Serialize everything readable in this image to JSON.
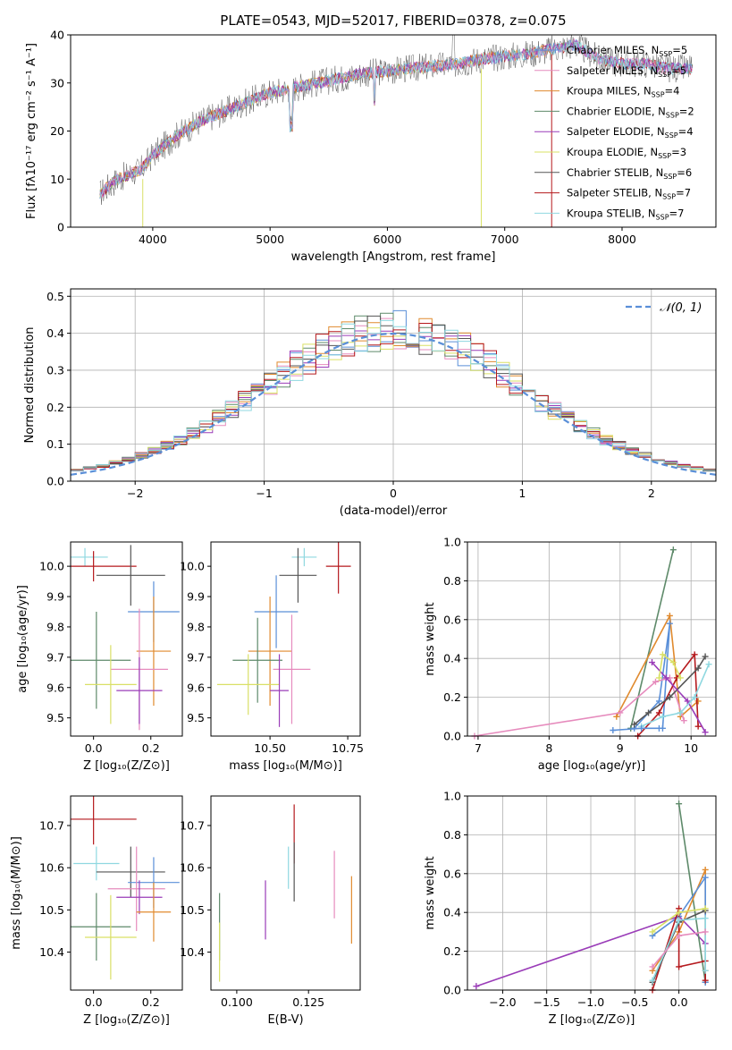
{
  "colors": {
    "chabrier_miles": "#5a8fd8",
    "salpeter_miles": "#e68bbd",
    "kroupa_miles": "#e08a2e",
    "chabrier_elodie": "#5e8a6a",
    "salpeter_elodie": "#9a3cb8",
    "kroupa_elodie": "#d9e066",
    "chabrier_stelib": "#555555",
    "salpeter_stelib": "#b5191d",
    "kroupa_stelib": "#8fd8e0",
    "gauss": "#5a8fd8"
  },
  "chart_data": [
    {
      "id": "spectrum",
      "type": "line",
      "title": "PLATE=0543, MJD=52017, FIBERID=0378, z=0.075",
      "xlabel": "wavelength [Angstrom, rest frame]",
      "ylabel": "Flux [fλ10⁻¹⁷ erg cm⁻² s⁻¹ A⁻¹]",
      "xlim": [
        3300,
        8800
      ],
      "ylim": [
        0,
        40
      ],
      "xticks": [
        "4000",
        "5000",
        "6000",
        "7000",
        "8000"
      ],
      "yticks": [
        "0",
        "10",
        "20",
        "30",
        "40"
      ],
      "continuum_x": [
        3550,
        3700,
        3900,
        4000,
        4200,
        4400,
        4600,
        4800,
        5000,
        5200,
        5400,
        5600,
        5800,
        6000,
        6200,
        6400,
        6600,
        6800,
        7000,
        7200,
        7400,
        7600,
        7800,
        8000,
        8200,
        8400,
        8600
      ],
      "continuum_y": [
        7,
        10,
        12,
        15,
        19,
        22,
        24,
        26,
        28,
        29,
        30,
        31,
        32,
        32.5,
        33,
        33.5,
        34,
        35,
        35.5,
        36,
        37,
        38,
        35,
        34,
        34,
        33,
        33
      ],
      "legend": [
        {
          "label": "Chabrier MILES, N",
          "n": "5",
          "color": "chabrier_miles"
        },
        {
          "label": "Salpeter MILES, N",
          "n": "5",
          "color": "salpeter_miles"
        },
        {
          "label": "Kroupa MILES, N",
          "n": "4",
          "color": "kroupa_miles"
        },
        {
          "label": "Chabrier ELODIE, N",
          "n": "2",
          "color": "chabrier_elodie"
        },
        {
          "label": "Salpeter ELODIE, N",
          "n": "4",
          "color": "salpeter_elodie"
        },
        {
          "label": "Kroupa ELODIE, N",
          "n": "3",
          "color": "kroupa_elodie"
        },
        {
          "label": "Chabrier STELIB, N",
          "n": "6",
          "color": "chabrier_stelib"
        },
        {
          "label": "Salpeter STELIB, N",
          "n": "7",
          "color": "salpeter_stelib"
        },
        {
          "label": "Kroupa STELIB, N",
          "n": "7",
          "color": "kroupa_stelib"
        }
      ],
      "legend_sub": "SSP"
    },
    {
      "id": "residuals",
      "type": "histogram",
      "xlabel": "(data-model)/error",
      "ylabel": "Normed distribution",
      "xlim": [
        -2.5,
        2.5
      ],
      "ylim": [
        0,
        0.52
      ],
      "xticks": [
        "−2",
        "−1",
        "0",
        "1",
        "2"
      ],
      "yticks": [
        "0.0",
        "0.1",
        "0.2",
        "0.3",
        "0.4",
        "0.5"
      ],
      "grid": true,
      "legend": "𝒩(0, 1)",
      "legend_position": "top-right"
    },
    {
      "id": "age-vs-Z",
      "type": "errorbar",
      "xlabel": "Z [log₁₀(Z/Z⊙)]",
      "ylabel": "age  [log₁₀(age/yr)]",
      "xlim": [
        -0.08,
        0.31
      ],
      "ylim": [
        9.44,
        10.08
      ],
      "xticks": [
        "0.0",
        "0.2"
      ],
      "yticks": [
        "9.5",
        "9.6",
        "9.7",
        "9.8",
        "9.9",
        "10.0"
      ],
      "points": [
        {
          "series": "kroupa_stelib",
          "x": -0.03,
          "xerr": 0.08,
          "y": 10.03,
          "yerr": 0.03
        },
        {
          "series": "salpeter_stelib",
          "x": 0.0,
          "xerr": 0.15,
          "y": 10.0,
          "yerr": 0.05
        },
        {
          "series": "chabrier_stelib",
          "x": 0.13,
          "xerr": 0.12,
          "y": 9.97,
          "yerr": 0.1
        },
        {
          "series": "chabrier_miles",
          "x": 0.21,
          "xerr": 0.09,
          "y": 9.85,
          "yerr": 0.1
        },
        {
          "series": "kroupa_miles",
          "x": 0.21,
          "xerr": 0.06,
          "y": 9.72,
          "yerr": 0.18
        },
        {
          "series": "salpeter_miles",
          "x": 0.16,
          "xerr": 0.1,
          "y": 9.66,
          "yerr": 0.2
        },
        {
          "series": "chabrier_elodie",
          "x": 0.01,
          "xerr": 0.12,
          "y": 9.69,
          "yerr": 0.16
        },
        {
          "series": "kroupa_elodie",
          "x": 0.06,
          "xerr": 0.09,
          "y": 9.61,
          "yerr": 0.13
        },
        {
          "series": "salpeter_elodie",
          "x": 0.16,
          "xerr": 0.08,
          "y": 9.59,
          "yerr": 0.11
        }
      ]
    },
    {
      "id": "age-vs-mass",
      "type": "errorbar",
      "xlabel": "mass [log₁₀(M/M⊙)]",
      "ylabel": "",
      "xlim": [
        10.31,
        10.79
      ],
      "ylim": [
        9.44,
        10.08
      ],
      "xticks": [
        "10.50",
        "10.75"
      ],
      "yticks": [
        "9.5",
        "9.6",
        "9.7",
        "9.8",
        "9.9",
        "10.0"
      ],
      "points": [
        {
          "series": "kroupa_stelib",
          "x": 10.61,
          "xerr": 0.04,
          "y": 10.03,
          "yerr": 0.03
        },
        {
          "series": "salpeter_stelib",
          "x": 10.72,
          "xerr": 0.04,
          "y": 10.0,
          "yerr": 0.09
        },
        {
          "series": "chabrier_stelib",
          "x": 10.59,
          "xerr": 0.06,
          "y": 9.97,
          "yerr": 0.09
        },
        {
          "series": "chabrier_miles",
          "x": 10.52,
          "xerr": 0.07,
          "y": 9.85,
          "yerr": 0.12
        },
        {
          "series": "kroupa_miles",
          "x": 10.5,
          "xerr": 0.07,
          "y": 9.72,
          "yerr": 0.18
        },
        {
          "series": "salpeter_miles",
          "x": 10.57,
          "xerr": 0.06,
          "y": 9.66,
          "yerr": 0.18
        },
        {
          "series": "chabrier_elodie",
          "x": 10.46,
          "xerr": 0.08,
          "y": 9.69,
          "yerr": 0.14
        },
        {
          "series": "kroupa_elodie",
          "x": 10.43,
          "xerr": 0.1,
          "y": 9.61,
          "yerr": 0.1
        },
        {
          "series": "salpeter_elodie",
          "x": 10.53,
          "xerr": 0.03,
          "y": 9.59,
          "yerr": 0.12
        }
      ]
    },
    {
      "id": "weight-vs-age",
      "type": "line",
      "xlabel": "age  [log₁₀(age/yr)]",
      "ylabel": "mass weight",
      "xlim": [
        6.85,
        10.35
      ],
      "ylim": [
        0,
        1.0
      ],
      "xticks": [
        "7",
        "8",
        "9",
        "10"
      ],
      "yticks": [
        "0.0",
        "0.2",
        "0.4",
        "0.6",
        "0.8",
        "1.0"
      ],
      "grid": true,
      "series": [
        {
          "series": "chabrier_elodie",
          "x": [
            9.15,
            9.75
          ],
          "y": [
            0.04,
            0.96
          ]
        },
        {
          "series": "kroupa_miles",
          "x": [
            8.95,
            9.7,
            9.85,
            10.1
          ],
          "y": [
            0.1,
            0.62,
            0.1,
            0.18
          ]
        },
        {
          "series": "chabrier_miles",
          "x": [
            9.2,
            9.55,
            9.7,
            9.6
          ],
          "y": [
            0.04,
            0.18,
            0.58,
            0.04
          ]
        },
        {
          "series": "salpeter_miles",
          "x": [
            6.95,
            9.0,
            9.5,
            9.7,
            9.9
          ],
          "y": [
            0.0,
            0.12,
            0.28,
            0.3,
            0.08
          ]
        },
        {
          "series": "salpeter_stelib",
          "x": [
            9.25,
            9.55,
            9.8,
            10.05,
            10.1
          ],
          "y": [
            0.0,
            0.12,
            0.3,
            0.42,
            0.05
          ]
        },
        {
          "series": "chabrier_stelib",
          "x": [
            9.2,
            9.4,
            9.7,
            10.1,
            10.2
          ],
          "y": [
            0.06,
            0.12,
            0.2,
            0.35,
            0.41
          ]
        },
        {
          "series": "salpeter_elodie",
          "x": [
            9.45,
            9.65,
            9.95,
            10.2
          ],
          "y": [
            0.38,
            0.3,
            0.18,
            0.02
          ]
        },
        {
          "series": "kroupa_elodie",
          "x": [
            9.55,
            9.6,
            9.75,
            9.85
          ],
          "y": [
            0.3,
            0.42,
            0.38,
            0.3
          ]
        },
        {
          "series": "kroupa_stelib",
          "x": [
            9.3,
            9.6,
            9.85,
            10.05,
            10.25
          ],
          "y": [
            0.05,
            0.1,
            0.12,
            0.2,
            0.37
          ]
        },
        {
          "series": "chabrier_miles",
          "x": [
            8.9,
            9.3,
            9.55
          ],
          "y": [
            0.03,
            0.04,
            0.04
          ]
        }
      ]
    },
    {
      "id": "mass-vs-Z",
      "type": "errorbar",
      "xlabel": "Z [log₁₀(Z/Z⊙)]",
      "ylabel": "mass [log₁₀(M/M⊙)]",
      "xlim": [
        -0.08,
        0.31
      ],
      "ylim": [
        10.31,
        10.77
      ],
      "xticks": [
        "0.0",
        "0.2"
      ],
      "yticks": [
        "10.4",
        "10.5",
        "10.6",
        "10.7"
      ],
      "points": [
        {
          "series": "salpeter_stelib",
          "x": 0.0,
          "xerr": 0.15,
          "y": 10.715,
          "yerr": 0.06
        },
        {
          "series": "kroupa_stelib",
          "x": 0.01,
          "xerr": 0.08,
          "y": 10.61,
          "yerr": 0.04
        },
        {
          "series": "chabrier_stelib",
          "x": 0.13,
          "xerr": 0.12,
          "y": 10.59,
          "yerr": 0.06
        },
        {
          "series": "chabrier_miles",
          "x": 0.21,
          "xerr": 0.09,
          "y": 10.565,
          "yerr": 0.06
        },
        {
          "series": "salpeter_miles",
          "x": 0.15,
          "xerr": 0.1,
          "y": 10.55,
          "yerr": 0.1
        },
        {
          "series": "salpeter_elodie",
          "x": 0.16,
          "xerr": 0.08,
          "y": 10.53,
          "yerr": 0.04
        },
        {
          "series": "kroupa_miles",
          "x": 0.21,
          "xerr": 0.06,
          "y": 10.495,
          "yerr": 0.07
        },
        {
          "series": "chabrier_elodie",
          "x": 0.01,
          "xerr": 0.12,
          "y": 10.46,
          "yerr": 0.08
        },
        {
          "series": "kroupa_elodie",
          "x": 0.06,
          "xerr": 0.09,
          "y": 10.435,
          "yerr": 0.1
        }
      ]
    },
    {
      "id": "mass-vs-EBV",
      "type": "errorbar",
      "xlabel": "E(B-V)",
      "ylabel": "",
      "xlim": [
        0.091,
        0.143
      ],
      "ylim": [
        10.31,
        10.77
      ],
      "xticks": [
        "0.100",
        "0.125"
      ],
      "yticks": [
        "10.4",
        "10.5",
        "10.6",
        "10.7"
      ],
      "points": [
        {
          "series": "salpeter_stelib",
          "x": 0.12,
          "y": 10.68,
          "yerr": 0.07
        },
        {
          "series": "kroupa_stelib",
          "x": 0.118,
          "y": 10.6,
          "yerr": 0.05
        },
        {
          "series": "chabrier_stelib",
          "x": 0.12,
          "y": 10.59,
          "yerr": 0.07
        },
        {
          "series": "salpeter_miles",
          "x": 0.134,
          "y": 10.56,
          "yerr": 0.08
        },
        {
          "series": "salpeter_elodie",
          "x": 0.11,
          "y": 10.5,
          "yerr": 0.07
        },
        {
          "series": "kroupa_miles",
          "x": 0.14,
          "y": 10.5,
          "yerr": 0.08
        },
        {
          "series": "chabrier_elodie",
          "x": 0.094,
          "y": 10.46,
          "yerr": 0.08
        },
        {
          "series": "kroupa_elodie",
          "x": 0.094,
          "y": 10.4,
          "yerr": 0.07
        }
      ]
    },
    {
      "id": "weight-vs-Z",
      "type": "line",
      "xlabel": "Z [log₁₀(Z/Z⊙)]",
      "ylabel": "mass weight",
      "xlim": [
        -2.4,
        0.42
      ],
      "ylim": [
        0,
        1.0
      ],
      "xticks": [
        "−2.0",
        "−1.5",
        "−1.0",
        "−0.5",
        "0.0"
      ],
      "yticks": [
        "0.0",
        "0.2",
        "0.4",
        "0.6",
        "0.8",
        "1.0"
      ],
      "grid": true,
      "series": [
        {
          "series": "salpeter_elodie",
          "x": [
            -2.3,
            0.0,
            0.3
          ],
          "y": [
            0.02,
            0.38,
            0.24
          ]
        },
        {
          "series": "chabrier_elodie",
          "x": [
            0.0,
            0.3
          ],
          "y": [
            0.96,
            0.04
          ]
        },
        {
          "series": "kroupa_miles",
          "x": [
            -0.3,
            0.0,
            0.3,
            0.3
          ],
          "y": [
            0.1,
            0.3,
            0.62,
            0.1
          ]
        },
        {
          "series": "chabrier_miles",
          "x": [
            -0.3,
            0.0,
            0.3,
            0.3
          ],
          "y": [
            0.28,
            0.38,
            0.58,
            0.04
          ]
        },
        {
          "series": "salpeter_stelib",
          "x": [
            -0.3,
            0.0,
            0.0,
            0.3,
            0.3
          ],
          "y": [
            0.0,
            0.42,
            0.12,
            0.15,
            0.05
          ]
        },
        {
          "series": "chabrier_stelib",
          "x": [
            -0.3,
            0.0,
            0.3
          ],
          "y": [
            0.04,
            0.35,
            0.41
          ]
        },
        {
          "series": "kroupa_elodie",
          "x": [
            -0.3,
            0.0,
            0.3
          ],
          "y": [
            0.3,
            0.4,
            0.42
          ]
        },
        {
          "series": "kroupa_stelib",
          "x": [
            -0.3,
            0.0,
            0.3,
            0.3
          ],
          "y": [
            0.05,
            0.36,
            0.37,
            0.1
          ]
        },
        {
          "series": "salpeter_miles",
          "x": [
            -0.3,
            0.0,
            0.3
          ],
          "y": [
            0.12,
            0.28,
            0.3
          ]
        }
      ]
    }
  ]
}
